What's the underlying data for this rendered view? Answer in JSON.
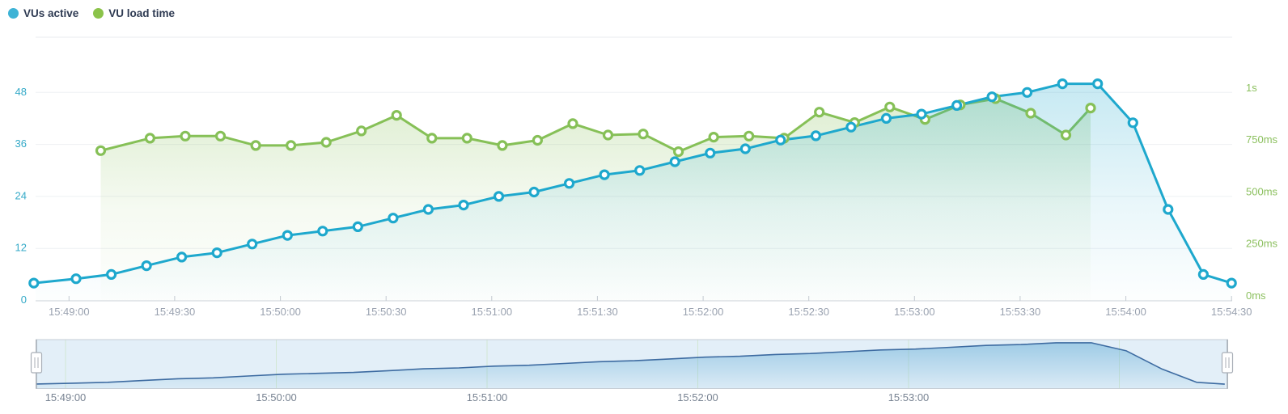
{
  "legend": {
    "items": [
      {
        "label": "VUs active",
        "color": "#3eb3d6"
      },
      {
        "label": "VU load time",
        "color": "#8bc34a"
      }
    ]
  },
  "chart_data": {
    "type": "line",
    "title": "",
    "x_axis": {
      "tick_labels": [
        "15:49:00",
        "15:49:30",
        "15:50:00",
        "15:50:30",
        "15:51:00",
        "15:51:30",
        "15:52:00",
        "15:52:30",
        "15:53:00",
        "15:53:30",
        "15:54:00",
        "15:54:30"
      ],
      "tick_interval_seconds": 30
    },
    "left_y_axis": {
      "series": "VUs active",
      "ticks": [
        0,
        12,
        24,
        36,
        48
      ],
      "label_color": "#35aac8"
    },
    "right_y_axis": {
      "series": "VU load time",
      "tick_labels": [
        "0ms",
        "250ms",
        "500ms",
        "750ms",
        "1s"
      ],
      "tick_values_ms": [
        0,
        250,
        500,
        750,
        1000
      ],
      "label_color": "#8cc05f"
    },
    "series": [
      {
        "name": "VUs active",
        "axis": "left",
        "color": "#1ea8cd",
        "marker": "open-circle",
        "x_seconds_from_15_49_00": [
          -10,
          2,
          12,
          22,
          32,
          42,
          52,
          62,
          72,
          82,
          92,
          102,
          112,
          122,
          132,
          142,
          152,
          162,
          172,
          182,
          192,
          202,
          212,
          222,
          232,
          242,
          252,
          262,
          272,
          282,
          292,
          302,
          312,
          322,
          330
        ],
        "values": [
          4,
          5,
          6,
          8,
          10,
          11,
          13,
          15,
          16,
          17,
          19,
          21,
          22,
          24,
          25,
          27,
          29,
          30,
          32,
          34,
          35,
          37,
          38,
          40,
          42,
          43,
          45,
          47,
          48,
          50,
          50,
          41,
          21,
          6,
          4
        ]
      },
      {
        "name": "VU load time",
        "axis": "right",
        "color": "#86c057",
        "marker": "open-circle",
        "x_seconds_from_15_49_00": [
          9,
          23,
          33,
          43,
          53,
          63,
          73,
          83,
          93,
          103,
          113,
          123,
          133,
          143,
          153,
          163,
          173,
          183,
          193,
          203,
          213,
          223,
          233,
          243,
          253,
          263,
          273,
          283,
          290
        ],
        "values_ms": [
          720,
          780,
          790,
          790,
          745,
          745,
          760,
          815,
          890,
          780,
          780,
          745,
          770,
          850,
          795,
          800,
          715,
          785,
          790,
          780,
          905,
          855,
          930,
          870,
          940,
          970,
          900,
          795,
          925
        ]
      }
    ],
    "brush": {
      "series_shown": "VUs active",
      "tick_labels": [
        "15:49:00",
        "15:50:00",
        "15:51:00",
        "15:52:00",
        "15:53:00"
      ],
      "selection": "full range"
    }
  },
  "colors": {
    "grid": "#eef0f3",
    "top_border": "#e9ebef",
    "axis_line": "#ccd1d8",
    "axis_tick": "#c3c9d0",
    "x_label": "#9aa2b0",
    "brush_bg": "#e3eff8",
    "brush_border": "#c6ced6",
    "brush_gridline": "#d2e7d3",
    "brush_line": "#3d6ba1",
    "brush_label": "#788392",
    "handle_border": "#a8aeb6",
    "handle_edge": "#9aa1a9"
  }
}
